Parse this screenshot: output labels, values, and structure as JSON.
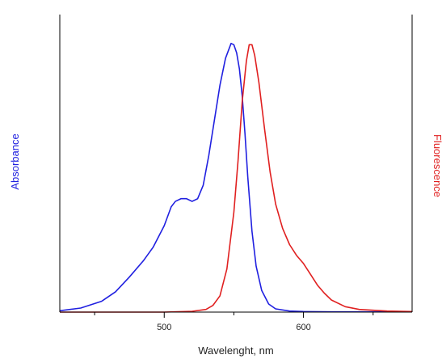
{
  "chart_data": {
    "type": "line",
    "title": "",
    "xlabel": "Wavelenght, nm",
    "ylabel_left": "Absorbance",
    "ylabel_right": "Fluorescence",
    "xlim": [
      425,
      678
    ],
    "ylim": [
      0,
      1
    ],
    "x_ticks_labeled": [
      500,
      600
    ],
    "x_ticks_minor": [
      450,
      550,
      650
    ],
    "grid": false,
    "legend": "none",
    "colors": {
      "absorbance": "#2020e0",
      "fluorescence": "#e02020",
      "axis": "#000000"
    },
    "series": [
      {
        "key": "absorbance",
        "axis": "left",
        "x": [
          425,
          440,
          455,
          465,
          475,
          485,
          492,
          500,
          505,
          508,
          512,
          516,
          520,
          524,
          528,
          532,
          536,
          540,
          544,
          548,
          550,
          552,
          554,
          556,
          558,
          560,
          563,
          566,
          570,
          575,
          580,
          590,
          600,
          620,
          650,
          678
        ],
        "y": [
          0.005,
          0.015,
          0.04,
          0.075,
          0.13,
          0.19,
          0.24,
          0.32,
          0.39,
          0.41,
          0.42,
          0.42,
          0.41,
          0.42,
          0.47,
          0.58,
          0.71,
          0.84,
          0.94,
          0.995,
          0.99,
          0.96,
          0.9,
          0.8,
          0.66,
          0.5,
          0.3,
          0.17,
          0.08,
          0.03,
          0.012,
          0.004,
          0.002,
          0.001,
          0.001,
          0.001
        ]
      },
      {
        "key": "fluorescence",
        "axis": "right",
        "x": [
          425,
          500,
          520,
          530,
          535,
          540,
          545,
          550,
          553,
          556,
          559,
          561,
          563,
          565,
          568,
          572,
          576,
          580,
          585,
          590,
          595,
          600,
          605,
          610,
          615,
          620,
          630,
          640,
          660,
          678
        ],
        "y": [
          0,
          0,
          0.003,
          0.01,
          0.025,
          0.06,
          0.16,
          0.37,
          0.56,
          0.78,
          0.93,
          0.99,
          0.99,
          0.95,
          0.85,
          0.68,
          0.52,
          0.4,
          0.31,
          0.25,
          0.21,
          0.18,
          0.14,
          0.1,
          0.07,
          0.045,
          0.02,
          0.01,
          0.004,
          0.002
        ]
      }
    ]
  }
}
